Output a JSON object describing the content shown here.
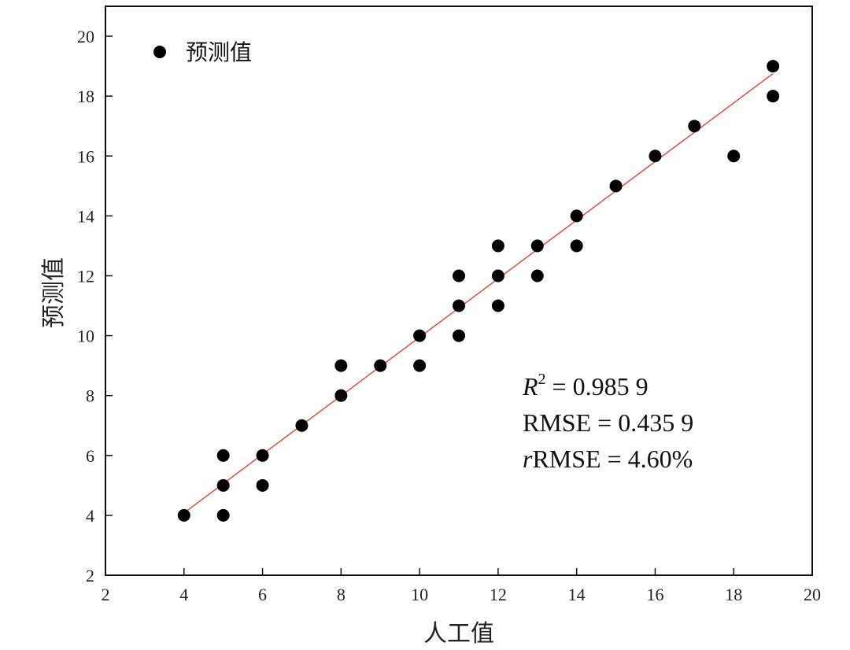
{
  "chart_data": {
    "type": "scatter",
    "xlabel": "人工值",
    "ylabel": "预测值",
    "xlim": [
      2,
      20
    ],
    "ylim": [
      2,
      21
    ],
    "x_ticks": [
      2,
      4,
      6,
      8,
      10,
      12,
      14,
      16,
      18,
      20
    ],
    "y_ticks": [
      2,
      4,
      6,
      8,
      10,
      12,
      14,
      16,
      18,
      20
    ],
    "grid": false,
    "legend_position": "top-left",
    "series": [
      {
        "name": "预测值",
        "color": "#000000",
        "marker": "circle",
        "points": [
          {
            "x": 4,
            "y": 4
          },
          {
            "x": 5,
            "y": 4
          },
          {
            "x": 5,
            "y": 5
          },
          {
            "x": 5,
            "y": 6
          },
          {
            "x": 6,
            "y": 5
          },
          {
            "x": 6,
            "y": 6
          },
          {
            "x": 7,
            "y": 7
          },
          {
            "x": 8,
            "y": 8
          },
          {
            "x": 8,
            "y": 9
          },
          {
            "x": 9,
            "y": 9
          },
          {
            "x": 10,
            "y": 9
          },
          {
            "x": 10,
            "y": 10
          },
          {
            "x": 11,
            "y": 10
          },
          {
            "x": 11,
            "y": 11
          },
          {
            "x": 11,
            "y": 12
          },
          {
            "x": 12,
            "y": 11
          },
          {
            "x": 12,
            "y": 12
          },
          {
            "x": 12,
            "y": 13
          },
          {
            "x": 13,
            "y": 12
          },
          {
            "x": 13,
            "y": 13
          },
          {
            "x": 14,
            "y": 13
          },
          {
            "x": 14,
            "y": 14
          },
          {
            "x": 15,
            "y": 15
          },
          {
            "x": 16,
            "y": 16
          },
          {
            "x": 17,
            "y": 17
          },
          {
            "x": 18,
            "y": 16
          },
          {
            "x": 19,
            "y": 18
          },
          {
            "x": 19,
            "y": 19
          }
        ]
      }
    ],
    "fit_line": {
      "color": "#e8402a",
      "from": {
        "x": 4,
        "y": 4.08
      },
      "to": {
        "x": 19,
        "y": 18.75
      }
    },
    "annotations": {
      "r2_symbol": "R",
      "r2_sup": "2",
      "r2_value": " = 0.985 9",
      "rmse": "RMSE = 0.435 9",
      "rrmse_prefix": "r",
      "rrmse_value": "RMSE = 4.60%"
    }
  }
}
